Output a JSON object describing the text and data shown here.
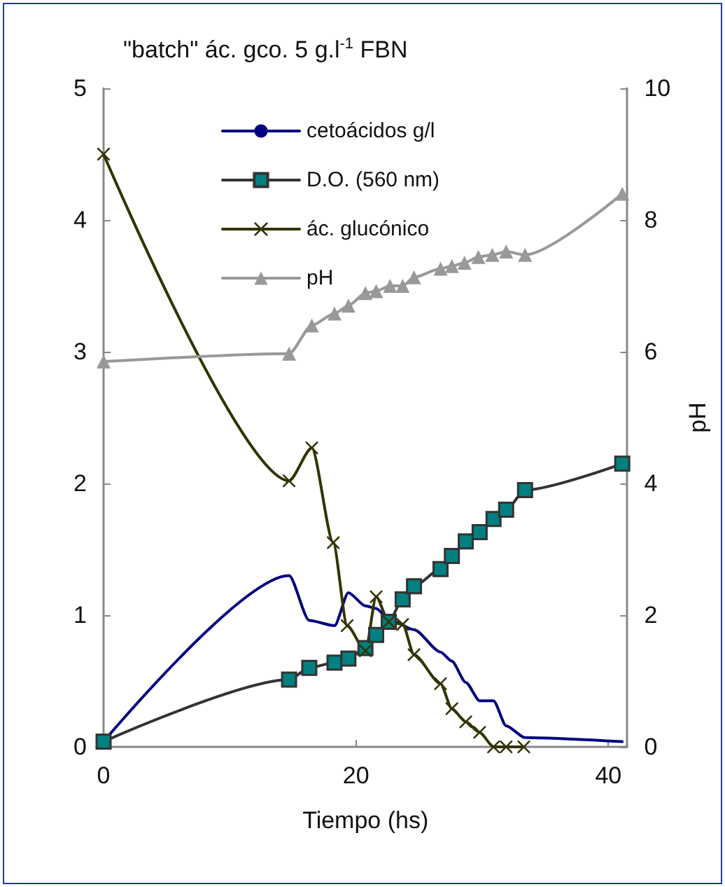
{
  "chart_data": {
    "type": "line",
    "title": "\"batch\" ác. gco. 5 g.l$^{-1}$ FBN",
    "xlabel": "Tiempo (hs)",
    "y2label": "pH",
    "xlim": [
      0,
      41.5
    ],
    "xticks": [
      0,
      20,
      40
    ],
    "ylim": [
      0,
      5
    ],
    "yticks": [
      0,
      1,
      2,
      3,
      4,
      5
    ],
    "y2lim": [
      0,
      10
    ],
    "y2ticks": [
      0,
      2,
      4,
      6,
      8,
      10
    ],
    "grid": false,
    "legend": "top left",
    "line_style": "solid",
    "series": [
      {
        "name": "cetoácidos g/l",
        "color": "#000080",
        "x": [
          0,
          14.7,
          16.3,
          18.3,
          19.4,
          20.75,
          21.6,
          22.6,
          24.6,
          26.7,
          27.6,
          28.7,
          29.8,
          30.9,
          31.9,
          33.4,
          41.1
        ],
        "values": [
          0.04,
          1.3,
          0.96,
          0.92,
          1.17,
          1.07,
          1.05,
          0.97,
          0.89,
          0.72,
          0.65,
          0.49,
          0.35,
          0.35,
          0.16,
          0.07,
          0.04
        ]
      },
      {
        "name": "D.O. (560 nm)",
        "color": "#333333",
        "marker": "square",
        "x": [
          0,
          14.7,
          16.3,
          18.3,
          19.4,
          20.75,
          21.6,
          22.6,
          23.7,
          24.6,
          26.7,
          27.6,
          28.7,
          29.8,
          30.9,
          31.9,
          33.4,
          41.1
        ],
        "values": [
          0.04,
          0.51,
          0.6,
          0.64,
          0.67,
          0.75,
          0.85,
          0.95,
          1.12,
          1.22,
          1.35,
          1.45,
          1.56,
          1.63,
          1.73,
          1.8,
          1.95,
          2.15
        ]
      },
      {
        "name": "ác. glucónico",
        "color": "#333300",
        "marker": "cross",
        "x": [
          0,
          14.7,
          16.5,
          18.2,
          19.3,
          20.75,
          21.6,
          22.6,
          23.7,
          24.6,
          26.7,
          27.6,
          28.7,
          29.8,
          30.9,
          31.9,
          33.3
        ],
        "values": [
          4.5,
          2.02,
          2.27,
          1.55,
          0.92,
          0.73,
          1.14,
          0.95,
          0.93,
          0.7,
          0.48,
          0.29,
          0.19,
          0.11,
          0,
          0,
          0
        ]
      },
      {
        "name": "pH",
        "color": "#999999",
        "marker": "triangle",
        "axis": "y2",
        "x": [
          0,
          14.7,
          16.5,
          18.3,
          19.4,
          20.75,
          21.6,
          22.7,
          23.7,
          24.6,
          26.7,
          27.6,
          28.6,
          29.7,
          30.8,
          31.9,
          33.4,
          41.1
        ],
        "values": [
          5.85,
          5.97,
          6.4,
          6.58,
          6.7,
          6.89,
          6.92,
          7.0,
          7.0,
          7.13,
          7.26,
          7.3,
          7.35,
          7.44,
          7.47,
          7.52,
          7.47,
          8.4
        ]
      }
    ]
  }
}
